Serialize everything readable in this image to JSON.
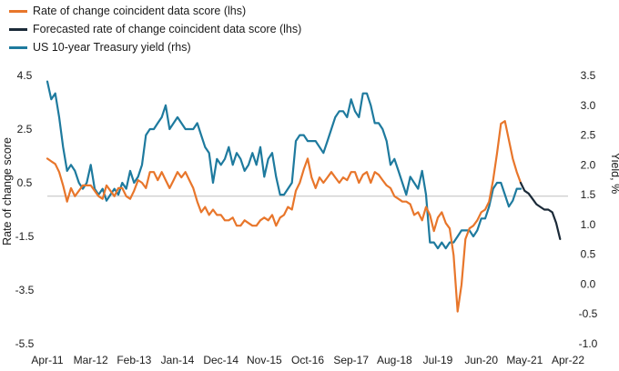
{
  "chart_data": {
    "type": "line",
    "title": "",
    "xlabel": "",
    "ylabel": "Rate of change score",
    "y2label": "Yield, %",
    "x_tick_labels": [
      "Apr-11",
      "Mar-12",
      "Feb-13",
      "Jan-14",
      "Dec-14",
      "Nov-15",
      "Oct-16",
      "Sep-17",
      "Aug-18",
      "Jul-19",
      "Jun-20",
      "May-21",
      "Apr-22"
    ],
    "x_range_months": [
      0,
      132
    ],
    "ylim_left": [
      -5.5,
      4.5
    ],
    "yticks_left": [
      "4.5",
      "2.5",
      "0.5",
      "-1.5",
      "-3.5",
      "-5.5"
    ],
    "ylim_right": [
      -1.0,
      3.5
    ],
    "yticks_right": [
      "3.5",
      "3.0",
      "2.5",
      "2.0",
      "1.5",
      "1.0",
      "0.5",
      "0.0",
      "-0.5",
      "-1.0"
    ],
    "legend_position": "top-left",
    "series": [
      {
        "name": "Rate of change coincident data score (lhs)",
        "axis": "left",
        "color": "#E8762B",
        "points": [
          [
            0,
            1.4
          ],
          [
            1,
            1.3
          ],
          [
            2,
            1.2
          ],
          [
            3,
            0.9
          ],
          [
            4,
            0.4
          ],
          [
            5,
            -0.2
          ],
          [
            6,
            0.3
          ],
          [
            7,
            0.0
          ],
          [
            8,
            0.2
          ],
          [
            9,
            0.4
          ],
          [
            10,
            0.4
          ],
          [
            11,
            0.4
          ],
          [
            12,
            0.2
          ],
          [
            13,
            0.0
          ],
          [
            14,
            -0.1
          ],
          [
            15,
            0.4
          ],
          [
            16,
            0.2
          ],
          [
            17,
            0.0
          ],
          [
            18,
            0.3
          ],
          [
            19,
            0.3
          ],
          [
            20,
            0.0
          ],
          [
            21,
            -0.1
          ],
          [
            22,
            0.2
          ],
          [
            23,
            0.6
          ],
          [
            24,
            0.5
          ],
          [
            25,
            0.3
          ],
          [
            26,
            0.9
          ],
          [
            27,
            0.9
          ],
          [
            28,
            0.6
          ],
          [
            29,
            0.9
          ],
          [
            30,
            0.6
          ],
          [
            31,
            0.3
          ],
          [
            32,
            0.6
          ],
          [
            33,
            0.9
          ],
          [
            34,
            0.7
          ],
          [
            35,
            0.9
          ],
          [
            36,
            0.6
          ],
          [
            37,
            0.3
          ],
          [
            38,
            -0.2
          ],
          [
            39,
            -0.6
          ],
          [
            40,
            -0.4
          ],
          [
            41,
            -0.7
          ],
          [
            42,
            -0.5
          ],
          [
            43,
            -0.7
          ],
          [
            44,
            -0.7
          ],
          [
            45,
            -0.9
          ],
          [
            46,
            -0.9
          ],
          [
            47,
            -0.8
          ],
          [
            48,
            -1.1
          ],
          [
            49,
            -1.1
          ],
          [
            50,
            -0.9
          ],
          [
            51,
            -1.0
          ],
          [
            52,
            -1.1
          ],
          [
            53,
            -1.1
          ],
          [
            54,
            -0.9
          ],
          [
            55,
            -0.8
          ],
          [
            56,
            -0.9
          ],
          [
            57,
            -0.7
          ],
          [
            58,
            -1.1
          ],
          [
            59,
            -0.8
          ],
          [
            60,
            -0.7
          ],
          [
            61,
            -0.4
          ],
          [
            62,
            -0.5
          ],
          [
            63,
            0.2
          ],
          [
            64,
            0.5
          ],
          [
            65,
            1.0
          ],
          [
            66,
            1.4
          ],
          [
            67,
            0.7
          ],
          [
            68,
            0.3
          ],
          [
            69,
            0.7
          ],
          [
            70,
            0.5
          ],
          [
            71,
            0.7
          ],
          [
            72,
            0.9
          ],
          [
            73,
            0.7
          ],
          [
            74,
            0.5
          ],
          [
            75,
            0.7
          ],
          [
            76,
            0.6
          ],
          [
            77,
            0.9
          ],
          [
            78,
            0.9
          ],
          [
            79,
            0.5
          ],
          [
            80,
            0.8
          ],
          [
            81,
            0.9
          ],
          [
            82,
            0.5
          ],
          [
            83,
            0.9
          ],
          [
            84,
            0.8
          ],
          [
            85,
            0.6
          ],
          [
            86,
            0.4
          ],
          [
            87,
            0.3
          ],
          [
            88,
            0.0
          ],
          [
            89,
            -0.1
          ],
          [
            90,
            -0.2
          ],
          [
            91,
            -0.2
          ],
          [
            92,
            -0.3
          ],
          [
            93,
            -0.7
          ],
          [
            94,
            -0.6
          ],
          [
            95,
            -0.9
          ],
          [
            96,
            -0.4
          ],
          [
            97,
            -0.7
          ],
          [
            98,
            -1.3
          ],
          [
            99,
            -0.8
          ],
          [
            100,
            -0.6
          ],
          [
            101,
            -1.0
          ],
          [
            102,
            -1.2
          ],
          [
            103,
            -2.2
          ],
          [
            104,
            -4.3
          ],
          [
            105,
            -3.3
          ],
          [
            106,
            -1.6
          ],
          [
            107,
            -1.2
          ],
          [
            108,
            -1.1
          ],
          [
            109,
            -0.9
          ],
          [
            110,
            -0.6
          ],
          [
            111,
            -0.5
          ],
          [
            112,
            -0.2
          ],
          [
            113,
            0.6
          ],
          [
            114,
            1.6
          ],
          [
            115,
            2.7
          ],
          [
            116,
            2.8
          ],
          [
            117,
            2.1
          ],
          [
            118,
            1.4
          ],
          [
            119,
            0.9
          ],
          [
            120,
            0.5
          ]
        ]
      },
      {
        "name": "Forecasted rate of change coincident data score (lhs)",
        "axis": "left",
        "color": "#1B2A38",
        "points": [
          [
            120,
            0.5
          ],
          [
            121,
            0.2
          ],
          [
            122,
            0.1
          ],
          [
            123,
            -0.1
          ],
          [
            124,
            -0.3
          ],
          [
            125,
            -0.4
          ],
          [
            126,
            -0.5
          ],
          [
            127,
            -0.5
          ],
          [
            128,
            -0.6
          ],
          [
            129,
            -1.0
          ],
          [
            130,
            -1.6
          ]
        ]
      },
      {
        "name": "US 10-year Treasury yield (rhs)",
        "axis": "right",
        "color": "#1E7A9E",
        "points": [
          [
            0,
            3.4
          ],
          [
            1,
            3.1
          ],
          [
            2,
            3.2
          ],
          [
            3,
            2.8
          ],
          [
            4,
            2.3
          ],
          [
            5,
            1.9
          ],
          [
            6,
            2.0
          ],
          [
            7,
            1.9
          ],
          [
            8,
            1.7
          ],
          [
            9,
            1.6
          ],
          [
            10,
            1.7
          ],
          [
            11,
            2.0
          ],
          [
            12,
            1.6
          ],
          [
            13,
            1.5
          ],
          [
            14,
            1.6
          ],
          [
            15,
            1.4
          ],
          [
            16,
            1.5
          ],
          [
            17,
            1.6
          ],
          [
            18,
            1.5
          ],
          [
            19,
            1.7
          ],
          [
            20,
            1.6
          ],
          [
            21,
            1.9
          ],
          [
            22,
            1.7
          ],
          [
            23,
            1.8
          ],
          [
            24,
            2.0
          ],
          [
            25,
            2.5
          ],
          [
            26,
            2.6
          ],
          [
            27,
            2.6
          ],
          [
            28,
            2.7
          ],
          [
            29,
            2.8
          ],
          [
            30,
            3.0
          ],
          [
            31,
            2.6
          ],
          [
            32,
            2.7
          ],
          [
            33,
            2.8
          ],
          [
            34,
            2.7
          ],
          [
            35,
            2.6
          ],
          [
            36,
            2.6
          ],
          [
            37,
            2.6
          ],
          [
            38,
            2.7
          ],
          [
            39,
            2.5
          ],
          [
            40,
            2.3
          ],
          [
            41,
            2.2
          ],
          [
            42,
            1.7
          ],
          [
            43,
            2.1
          ],
          [
            44,
            2.0
          ],
          [
            45,
            2.1
          ],
          [
            46,
            2.3
          ],
          [
            47,
            2.0
          ],
          [
            48,
            2.2
          ],
          [
            49,
            2.1
          ],
          [
            50,
            1.9
          ],
          [
            51,
            2.0
          ],
          [
            52,
            2.2
          ],
          [
            53,
            2.0
          ],
          [
            54,
            2.3
          ],
          [
            55,
            1.8
          ],
          [
            56,
            2.1
          ],
          [
            57,
            2.2
          ],
          [
            58,
            1.8
          ],
          [
            59,
            1.5
          ],
          [
            60,
            1.5
          ],
          [
            61,
            1.6
          ],
          [
            62,
            1.7
          ],
          [
            63,
            2.4
          ],
          [
            64,
            2.5
          ],
          [
            65,
            2.5
          ],
          [
            66,
            2.4
          ],
          [
            67,
            2.4
          ],
          [
            68,
            2.4
          ],
          [
            69,
            2.3
          ],
          [
            70,
            2.2
          ],
          [
            71,
            2.4
          ],
          [
            72,
            2.6
          ],
          [
            73,
            2.8
          ],
          [
            74,
            2.9
          ],
          [
            75,
            2.9
          ],
          [
            76,
            2.8
          ],
          [
            77,
            3.1
          ],
          [
            78,
            2.9
          ],
          [
            79,
            2.8
          ],
          [
            80,
            3.2
          ],
          [
            81,
            3.2
          ],
          [
            82,
            3.0
          ],
          [
            83,
            2.7
          ],
          [
            84,
            2.7
          ],
          [
            85,
            2.6
          ],
          [
            86,
            2.4
          ],
          [
            87,
            2.0
          ],
          [
            88,
            2.1
          ],
          [
            89,
            1.9
          ],
          [
            90,
            1.7
          ],
          [
            91,
            1.5
          ],
          [
            92,
            1.8
          ],
          [
            93,
            1.7
          ],
          [
            94,
            1.6
          ],
          [
            95,
            1.9
          ],
          [
            96,
            1.5
          ],
          [
            97,
            0.7
          ],
          [
            98,
            0.7
          ],
          [
            99,
            0.6
          ],
          [
            100,
            0.7
          ],
          [
            101,
            0.6
          ],
          [
            102,
            0.7
          ],
          [
            103,
            0.7
          ],
          [
            104,
            0.8
          ],
          [
            105,
            0.9
          ],
          [
            106,
            0.9
          ],
          [
            107,
            0.9
          ],
          [
            108,
            0.8
          ],
          [
            109,
            0.9
          ],
          [
            110,
            1.1
          ],
          [
            111,
            1.1
          ],
          [
            112,
            1.3
          ],
          [
            113,
            1.6
          ],
          [
            114,
            1.7
          ],
          [
            115,
            1.7
          ],
          [
            116,
            1.5
          ],
          [
            117,
            1.3
          ],
          [
            118,
            1.4
          ],
          [
            119,
            1.6
          ],
          [
            120,
            1.6
          ]
        ]
      }
    ]
  }
}
